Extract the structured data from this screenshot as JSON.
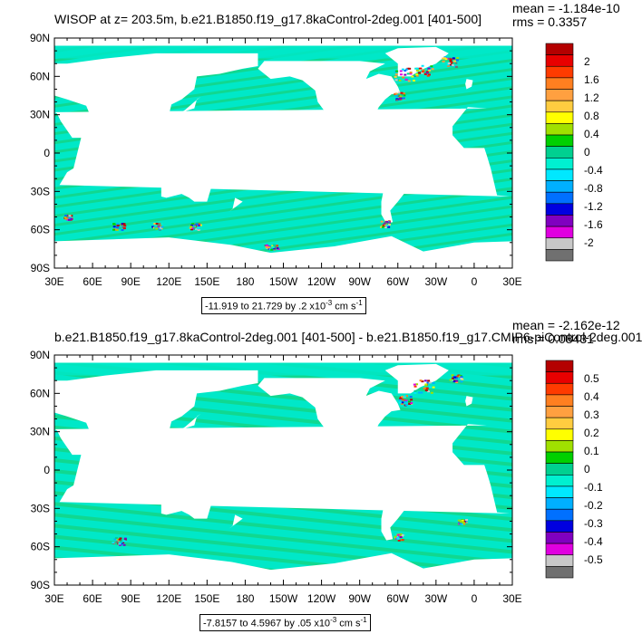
{
  "panels": [
    {
      "title": "WISOP at z= 203.5m, b.e21.B1850.f19_g17.8kaControl-2deg.001 [401-500]",
      "mean": "mean = -1.184e-10",
      "rms": "rms = 0.3357",
      "range_text": "-11.919 to 21.729 by .2 x10",
      "range_exp": "-3",
      "range_unit": " cm s",
      "range_unit_exp": "-1",
      "colorbar_labels": [
        "2",
        "1.6",
        "1.2",
        "0.8",
        "0.4",
        "0",
        "-0.4",
        "-0.8",
        "-1.2",
        "-1.6",
        "-2"
      ]
    },
    {
      "title": "b.e21.B1850.f19_g17.8kaControl-2deg.001 [401-500] - b.e21.B1850.f19_g17.CMIP6-piControl-2deg.001",
      "mean": "mean = -2.162e-12",
      "rms": "rms = 0.08431",
      "range_text": "-7.8157 to 4.5967 by .05 x10",
      "range_exp": "-3",
      "range_unit": " cm s",
      "range_unit_exp": "-1",
      "colorbar_labels": [
        "0.5",
        "0.4",
        "0.3",
        "0.2",
        "0.1",
        "0",
        "-0.1",
        "-0.2",
        "-0.3",
        "-0.4",
        "-0.5"
      ]
    }
  ],
  "lat_labels": [
    "90N",
    "60N",
    "30N",
    "0",
    "30S",
    "60S",
    "90S"
  ],
  "lon_labels": [
    "30E",
    "60E",
    "90E",
    "120E",
    "150E",
    "180",
    "150W",
    "120W",
    "90W",
    "60W",
    "30W",
    "0",
    "30E"
  ],
  "colorbar_colors": [
    "#b40000",
    "#e80000",
    "#ff3b00",
    "#ff7f20",
    "#ffa040",
    "#ffcc40",
    "#ffff00",
    "#a0e000",
    "#00d000",
    "#00d090",
    "#00f0d0",
    "#00e8ff",
    "#00b0ff",
    "#0070ff",
    "#0000e0",
    "#8000c0",
    "#e000e0",
    "#c8c8c8",
    "#707070"
  ],
  "ocean_color": "#00e8c8",
  "band_color": "#10d890"
}
